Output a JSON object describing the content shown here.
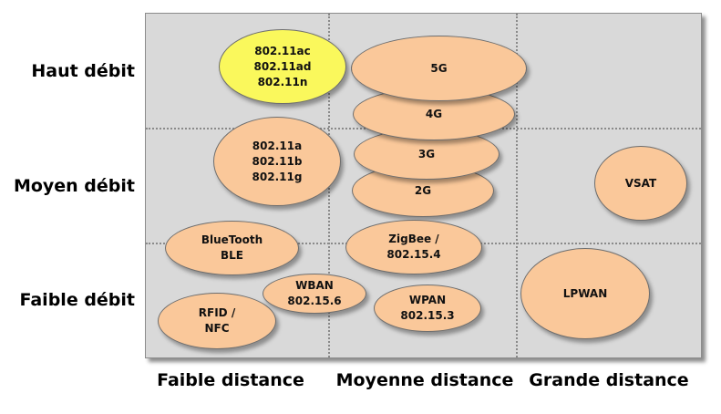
{
  "rows": [
    "Haut débit",
    "Moyen débit",
    "Faible débit"
  ],
  "columns": [
    "Faible distance",
    "Moyenne distance",
    "Grande distance"
  ],
  "colors": {
    "panel": "#d9d9d9",
    "bubble": "#fac89a",
    "highlight": "#faf85c",
    "grid": "#8a8a8a"
  },
  "bubbles": {
    "wifi_new": [
      "802.11ac",
      "802.11ad",
      "802.11n"
    ],
    "g5": [
      "5G"
    ],
    "g4": [
      "4G"
    ],
    "wifi_old": [
      "802.11a",
      "802.11b",
      "802.11g"
    ],
    "g3": [
      "3G"
    ],
    "g2": [
      "2G"
    ],
    "vsat": [
      "VSAT"
    ],
    "bluetooth": [
      "BlueTooth",
      "BLE"
    ],
    "zigbee": [
      "ZigBee /",
      "802.15.4"
    ],
    "lpwan": [
      "LPWAN"
    ],
    "wban": [
      "WBAN",
      "802.15.6"
    ],
    "rfid": [
      "RFID /",
      "NFC"
    ],
    "wpan": [
      "WPAN",
      "802.15.3"
    ]
  }
}
